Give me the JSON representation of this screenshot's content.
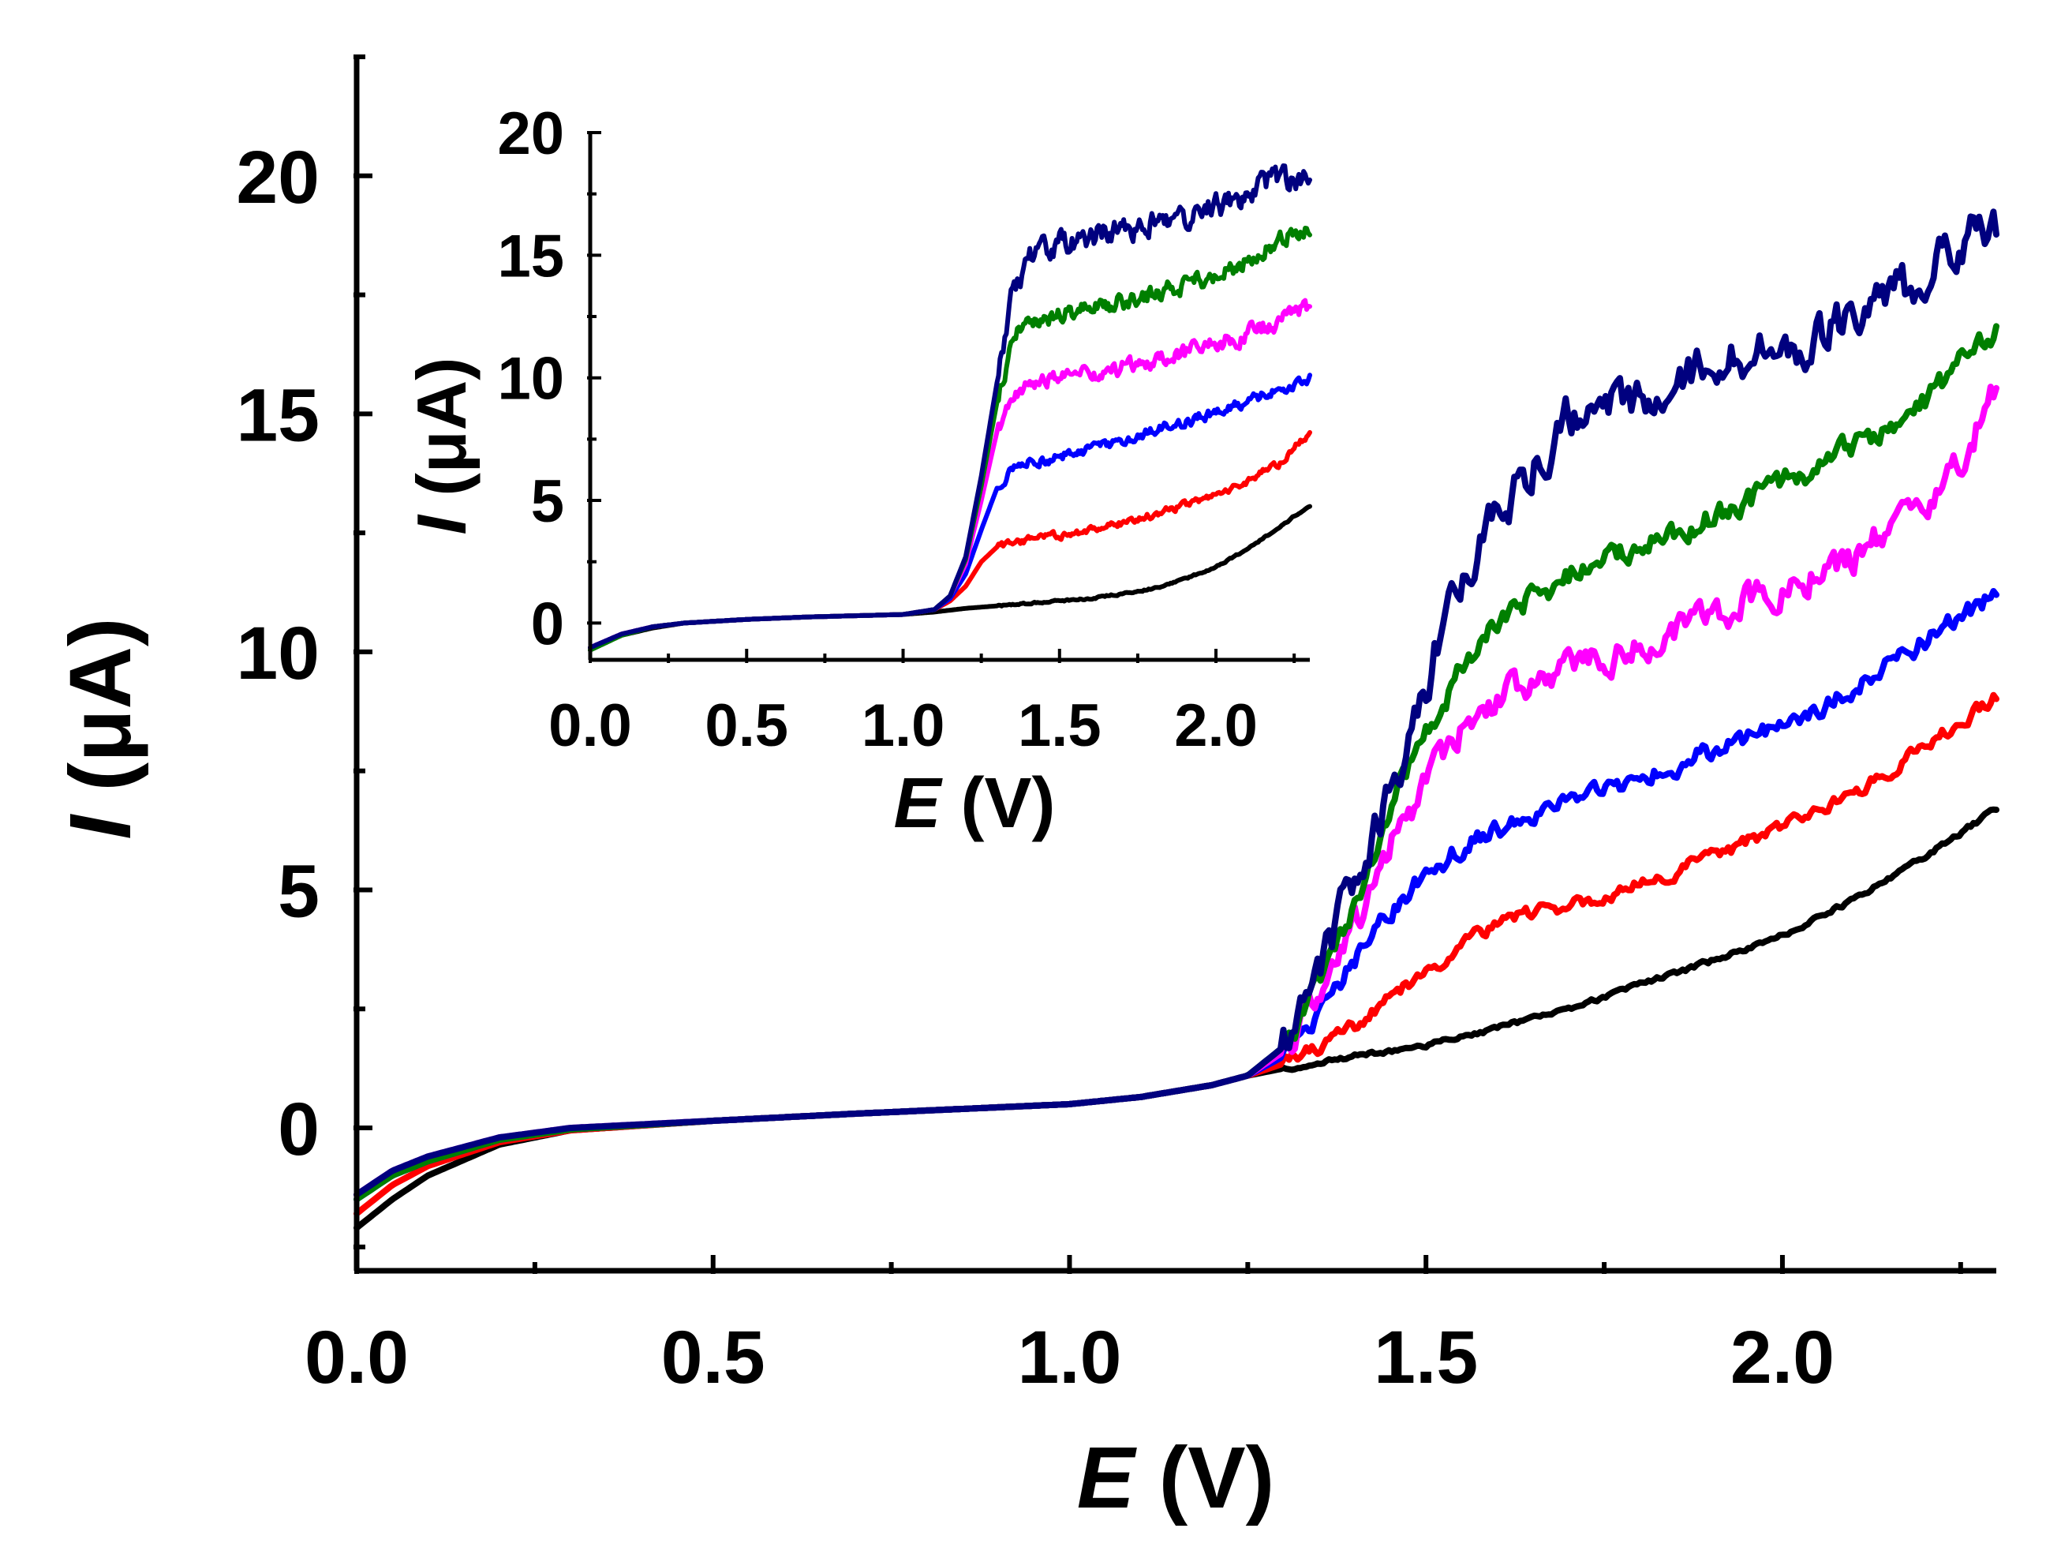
{
  "chart_data": [
    {
      "id": "main",
      "type": "line",
      "xlabel_symbol": "E",
      "xlabel_unit": " (V)",
      "ylabel_symbol": "I",
      "ylabel_unit": " (μA)",
      "xlim": [
        0,
        2.3
      ],
      "ylim": [
        -3,
        22.5
      ],
      "xticks": [
        0.0,
        0.5,
        1.0,
        1.5,
        2.0
      ],
      "xtick_labels": [
        "0.0",
        "0.5",
        "1.0",
        "1.5",
        "2.0"
      ],
      "xminor": [
        0.25,
        0.75,
        1.25,
        1.75,
        2.25
      ],
      "yticks": [
        0,
        5,
        10,
        15,
        20
      ],
      "ytick_labels": [
        "0",
        "5",
        "10",
        "15",
        "20"
      ],
      "yminor": [
        -2.5,
        2.5,
        7.5,
        12.5,
        17.5,
        22.5
      ],
      "series": [
        {
          "name": "black",
          "color": "#000000",
          "noise": 0.04,
          "x": [
            0,
            0.05,
            0.1,
            0.2,
            0.3,
            0.5,
            0.7,
            1.0,
            1.1,
            1.2,
            1.25,
            1.3,
            1.4,
            1.5,
            1.6,
            1.7,
            1.8,
            1.9,
            2.0,
            2.1,
            2.2,
            2.3
          ],
          "y": [
            -2.1,
            -1.5,
            -1.0,
            -0.35,
            -0.05,
            0.15,
            0.3,
            0.5,
            0.65,
            0.9,
            1.1,
            1.25,
            1.5,
            1.75,
            2.1,
            2.5,
            3.0,
            3.5,
            4.05,
            4.8,
            5.7,
            6.7
          ]
        },
        {
          "name": "red",
          "color": "#ff0000",
          "noise": 0.12,
          "x": [
            0,
            0.05,
            0.1,
            0.2,
            0.3,
            0.5,
            0.7,
            1.0,
            1.1,
            1.2,
            1.25,
            1.3,
            1.35,
            1.4,
            1.5,
            1.6,
            1.7,
            1.8,
            1.9,
            2.0,
            2.1,
            2.2,
            2.3
          ],
          "y": [
            -1.8,
            -1.2,
            -0.8,
            -0.3,
            -0.05,
            0.15,
            0.3,
            0.5,
            0.65,
            0.9,
            1.1,
            1.35,
            1.7,
            2.1,
            3.3,
            4.3,
            4.7,
            5.1,
            5.7,
            6.3,
            7.0,
            8.0,
            9.1
          ]
        },
        {
          "name": "blue",
          "color": "#0000ff",
          "noise": 0.18,
          "x": [
            0,
            0.05,
            0.1,
            0.2,
            0.3,
            0.5,
            0.7,
            1.0,
            1.1,
            1.2,
            1.25,
            1.3,
            1.35,
            1.4,
            1.45,
            1.5,
            1.55,
            1.6,
            1.7,
            1.8,
            1.9,
            2.0,
            2.1,
            2.2,
            2.3
          ],
          "y": [
            -1.5,
            -1.0,
            -0.7,
            -0.25,
            -0.03,
            0.15,
            0.3,
            0.5,
            0.65,
            0.9,
            1.1,
            1.5,
            2.4,
            3.5,
            4.5,
            5.3,
            5.9,
            6.3,
            6.8,
            7.3,
            7.9,
            8.4,
            9.2,
            10.2,
            11.2
          ]
        },
        {
          "name": "magenta",
          "color": "#ff00ff",
          "noise": 0.28,
          "x": [
            0,
            0.05,
            0.1,
            0.2,
            0.3,
            0.5,
            0.7,
            1.0,
            1.1,
            1.2,
            1.25,
            1.3,
            1.35,
            1.4,
            1.45,
            1.5,
            1.55,
            1.6,
            1.7,
            1.8,
            1.9,
            2.0,
            2.1,
            2.2,
            2.25,
            2.3
          ],
          "y": [
            -1.4,
            -0.9,
            -0.6,
            -0.2,
            0.0,
            0.15,
            0.3,
            0.5,
            0.65,
            0.9,
            1.1,
            1.6,
            2.8,
            4.3,
            5.9,
            7.3,
            8.3,
            9.0,
            9.6,
            10.2,
            10.8,
            11.3,
            12.0,
            13.2,
            14.0,
            15.6
          ]
        },
        {
          "name": "green",
          "color": "#007f00",
          "noise": 0.22,
          "x": [
            0,
            0.05,
            0.1,
            0.2,
            0.3,
            0.5,
            0.7,
            1.0,
            1.1,
            1.2,
            1.25,
            1.3,
            1.35,
            1.4,
            1.45,
            1.5,
            1.55,
            1.6,
            1.7,
            1.8,
            1.9,
            2.0,
            2.1,
            2.2,
            2.3
          ],
          "y": [
            -1.5,
            -1.0,
            -0.7,
            -0.25,
            -0.03,
            0.15,
            0.3,
            0.5,
            0.65,
            0.9,
            1.1,
            1.7,
            3.0,
            4.7,
            6.6,
            8.4,
            9.6,
            10.6,
            11.6,
            12.2,
            12.8,
            13.5,
            14.3,
            15.3,
            16.8
          ]
        },
        {
          "name": "navy",
          "color": "#00007f",
          "noise": 0.4,
          "x": [
            0,
            0.05,
            0.1,
            0.2,
            0.3,
            0.5,
            0.7,
            1.0,
            1.1,
            1.2,
            1.25,
            1.3,
            1.35,
            1.4,
            1.45,
            1.5,
            1.55,
            1.6,
            1.65,
            1.7,
            1.8,
            1.9,
            2.0,
            2.1,
            2.2,
            2.25,
            2.3
          ],
          "y": [
            -1.4,
            -0.9,
            -0.6,
            -0.2,
            0.0,
            0.15,
            0.3,
            0.5,
            0.65,
            0.9,
            1.1,
            1.7,
            3.2,
            5.1,
            7.1,
            9.4,
            11.6,
            12.8,
            14.0,
            14.9,
            15.4,
            16.0,
            16.3,
            17.1,
            17.8,
            18.6,
            18.9
          ]
        }
      ]
    },
    {
      "id": "inset",
      "type": "line",
      "xlabel_symbol": "E",
      "xlabel_unit": " (V)",
      "ylabel_symbol": "I",
      "ylabel_unit": " (μA)",
      "xlim": [
        0,
        2.3
      ],
      "ylim": [
        -1.5,
        20
      ],
      "xticks": [
        0.0,
        0.5,
        1.0,
        1.5,
        2.0
      ],
      "xtick_labels": [
        "0.0",
        "0.5",
        "1.0",
        "1.5",
        "2.0"
      ],
      "xminor": [
        0.25,
        0.75,
        1.25,
        1.75,
        2.25
      ],
      "yticks": [
        0,
        5,
        10,
        15,
        20
      ],
      "ytick_labels": [
        "0",
        "5",
        "10",
        "15",
        "20"
      ],
      "yminor": [
        2.5,
        7.5,
        12.5,
        17.5
      ],
      "series": [
        {
          "name": "black",
          "color": "#000000",
          "noise": 0.03,
          "x": [
            0,
            0.1,
            0.2,
            0.3,
            0.5,
            0.7,
            1.0,
            1.1,
            1.2,
            1.4,
            1.6,
            1.8,
            1.9,
            2.0,
            2.1,
            2.2,
            2.3
          ],
          "y": [
            -1.1,
            -0.5,
            -0.2,
            0.0,
            0.15,
            0.25,
            0.35,
            0.45,
            0.6,
            0.8,
            1.0,
            1.4,
            1.8,
            2.3,
            3.0,
            3.9,
            4.8
          ]
        },
        {
          "name": "red",
          "color": "#ff0000",
          "noise": 0.12,
          "x": [
            0,
            0.1,
            0.2,
            0.3,
            0.5,
            0.7,
            1.0,
            1.1,
            1.15,
            1.2,
            1.25,
            1.3,
            1.4,
            1.5,
            1.6,
            1.7,
            1.8,
            1.9,
            2.0,
            2.1,
            2.2,
            2.3
          ],
          "y": [
            -1.0,
            -0.45,
            -0.15,
            0.0,
            0.15,
            0.25,
            0.35,
            0.55,
            0.9,
            1.5,
            2.5,
            3.1,
            3.4,
            3.6,
            3.8,
            4.1,
            4.4,
            4.8,
            5.3,
            5.8,
            6.5,
            7.8
          ]
        },
        {
          "name": "blue",
          "color": "#0000ff",
          "noise": 0.18,
          "x": [
            0,
            0.1,
            0.2,
            0.3,
            0.5,
            0.7,
            1.0,
            1.1,
            1.15,
            1.2,
            1.25,
            1.3,
            1.35,
            1.4,
            1.5,
            1.6,
            1.7,
            1.8,
            1.9,
            2.0,
            2.1,
            2.2,
            2.3
          ],
          "y": [
            -1.0,
            -0.45,
            -0.15,
            0.0,
            0.15,
            0.25,
            0.35,
            0.55,
            1.0,
            2.0,
            3.8,
            5.5,
            6.3,
            6.5,
            6.8,
            7.1,
            7.4,
            7.8,
            8.2,
            8.6,
            9.0,
            9.5,
            10.0
          ]
        },
        {
          "name": "magenta",
          "color": "#ff00ff",
          "noise": 0.28,
          "x": [
            0,
            0.1,
            0.2,
            0.3,
            0.5,
            0.7,
            1.0,
            1.1,
            1.15,
            1.2,
            1.25,
            1.3,
            1.35,
            1.4,
            1.5,
            1.6,
            1.7,
            1.8,
            1.9,
            2.0,
            2.1,
            2.2,
            2.3
          ],
          "y": [
            -1.0,
            -0.45,
            -0.15,
            0.0,
            0.15,
            0.25,
            0.35,
            0.55,
            1.1,
            2.4,
            5.0,
            7.8,
            9.2,
            9.7,
            10.0,
            10.2,
            10.4,
            10.7,
            11.0,
            11.4,
            11.8,
            12.3,
            12.9
          ]
        },
        {
          "name": "green",
          "color": "#007f00",
          "noise": 0.3,
          "x": [
            0,
            0.1,
            0.2,
            0.3,
            0.5,
            0.7,
            1.0,
            1.1,
            1.15,
            1.2,
            1.25,
            1.3,
            1.35,
            1.4,
            1.5,
            1.6,
            1.7,
            1.8,
            1.9,
            2.0,
            2.1,
            2.2,
            2.3
          ],
          "y": [
            -1.1,
            -0.5,
            -0.15,
            0.0,
            0.15,
            0.25,
            0.35,
            0.55,
            1.1,
            2.6,
            5.6,
            9.0,
            11.6,
            12.3,
            12.6,
            12.9,
            13.1,
            13.4,
            13.8,
            14.2,
            14.8,
            15.5,
            16.3
          ]
        },
        {
          "name": "navy",
          "color": "#00007f",
          "noise": 0.4,
          "x": [
            0,
            0.1,
            0.2,
            0.3,
            0.5,
            0.7,
            1.0,
            1.1,
            1.15,
            1.2,
            1.25,
            1.3,
            1.35,
            1.4,
            1.5,
            1.6,
            1.7,
            1.8,
            1.9,
            2.0,
            2.1,
            2.2,
            2.3
          ],
          "y": [
            -1.0,
            -0.45,
            -0.15,
            0.0,
            0.15,
            0.25,
            0.35,
            0.55,
            1.1,
            2.7,
            6.0,
            9.8,
            13.5,
            14.9,
            15.5,
            15.8,
            16.0,
            16.3,
            16.6,
            17.0,
            17.5,
            18.1,
            18.3
          ]
        }
      ]
    }
  ]
}
